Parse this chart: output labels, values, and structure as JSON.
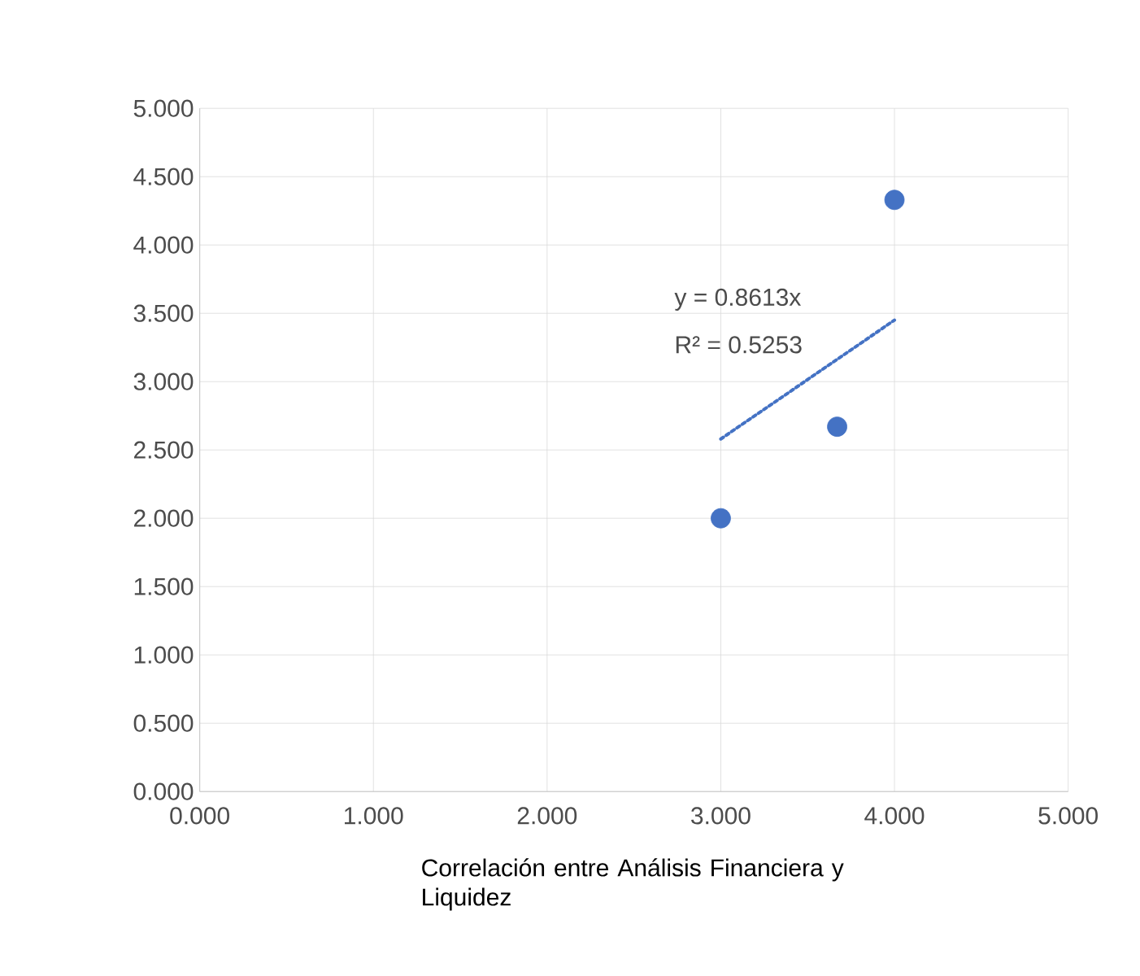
{
  "chart_data": {
    "type": "scatter",
    "xlabel": "Correlación entre Análisis Financiera y Liquidez",
    "xlim": [
      0,
      5
    ],
    "ylim": [
      0,
      5
    ],
    "xticks": [
      {
        "value": 0,
        "label": "0.000"
      },
      {
        "value": 1,
        "label": "1.000"
      },
      {
        "value": 2,
        "label": "2.000"
      },
      {
        "value": 3,
        "label": "3.000"
      },
      {
        "value": 4,
        "label": "4.000"
      },
      {
        "value": 5,
        "label": "5.000"
      }
    ],
    "yticks": [
      {
        "value": 0,
        "label": "0.000"
      },
      {
        "value": 0.5,
        "label": "0.500"
      },
      {
        "value": 1,
        "label": "1.000"
      },
      {
        "value": 1.5,
        "label": "1.500"
      },
      {
        "value": 2,
        "label": "2.000"
      },
      {
        "value": 2.5,
        "label": "2.500"
      },
      {
        "value": 3,
        "label": "3.000"
      },
      {
        "value": 3.5,
        "label": "3.500"
      },
      {
        "value": 4,
        "label": "4.000"
      },
      {
        "value": 4.5,
        "label": "4.500"
      },
      {
        "value": 5,
        "label": "5.000"
      }
    ],
    "grid": true,
    "series": [
      {
        "color": "#4472c4",
        "marker": "circle",
        "x": [
          3.0,
          3.67,
          4.0
        ],
        "values": [
          2.0,
          2.67,
          4.33
        ]
      },
      {
        "type": "line",
        "color": "#4472c4",
        "marker": "none",
        "line_style": "dotted",
        "x": [
          3.0,
          4.0
        ],
        "values": [
          2.58,
          3.45
        ]
      }
    ],
    "annotations": [
      "y = 0.8613x",
      "R² = 0.5253"
    ]
  }
}
